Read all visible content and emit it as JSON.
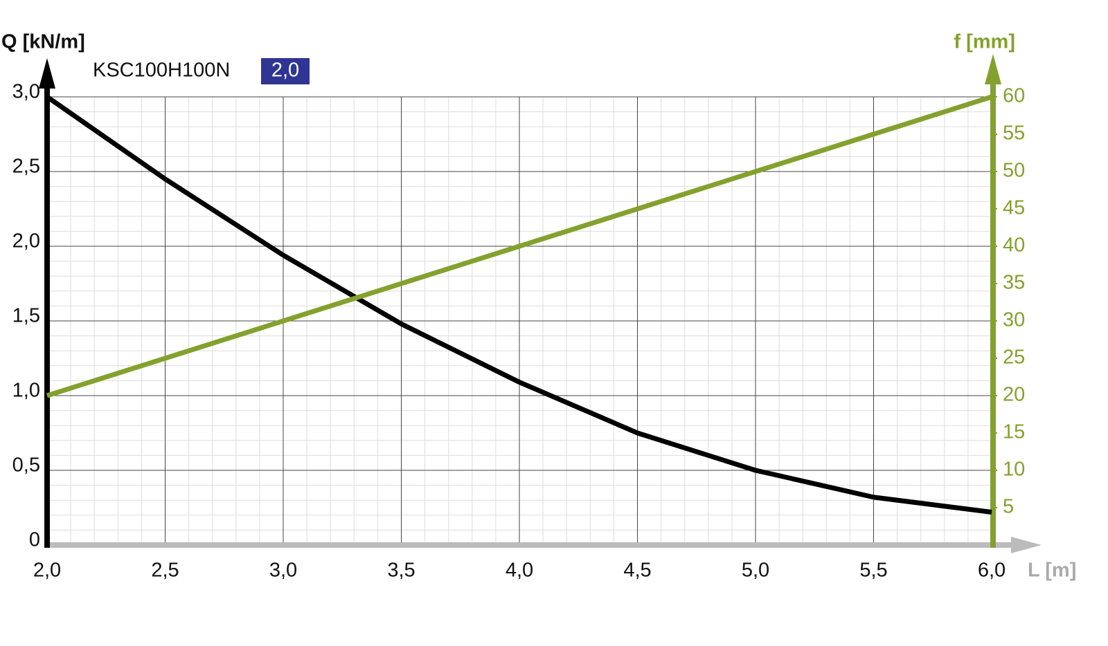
{
  "chart_data": {
    "type": "line",
    "y_label": "Q [kN/m]",
    "y2_label": "f [mm]",
    "x_label": "L [m]",
    "legend_label": "KSC100H100N",
    "legend_badge": "2,0",
    "legend_badge_color": "#2e3592",
    "grid": true,
    "x": [
      2.0,
      2.5,
      3.0,
      3.5,
      4.0,
      4.5,
      5.0,
      5.5,
      6.0
    ],
    "xlim": [
      2.0,
      6.0
    ],
    "xticks": [
      {
        "value": 2.0,
        "label": "2,0"
      },
      {
        "value": 2.5,
        "label": "2,5"
      },
      {
        "value": 3.0,
        "label": "3,0"
      },
      {
        "value": 3.5,
        "label": "3,5"
      },
      {
        "value": 4.0,
        "label": "4,0"
      },
      {
        "value": 4.5,
        "label": "4,5"
      },
      {
        "value": 5.0,
        "label": "5,0"
      },
      {
        "value": 5.5,
        "label": "5,5"
      },
      {
        "value": 6.0,
        "label": "6,0"
      }
    ],
    "ylim": [
      0,
      3.0
    ],
    "yticks": [
      0,
      {
        "value": 0.5,
        "label": "0,5"
      },
      {
        "value": 1.0,
        "label": "1,0"
      },
      {
        "value": 1.5,
        "label": "1,5"
      },
      {
        "value": 2.0,
        "label": "2,0"
      },
      {
        "value": 2.5,
        "label": "2,5"
      },
      {
        "value": 3.0,
        "label": "3,0"
      }
    ],
    "y2lim": [
      0,
      60
    ],
    "y2ticks": [
      5,
      10,
      15,
      20,
      25,
      30,
      35,
      40,
      45,
      50,
      55,
      60
    ],
    "series": [
      {
        "color": "#000000",
        "values": [
          3.0,
          2.45,
          1.94,
          1.48,
          1.09,
          0.75,
          0.5,
          0.32,
          0.22
        ]
      },
      {
        "color": "#84a12e",
        "axis": "y2",
        "values": [
          20,
          25,
          30,
          35,
          40,
          45,
          50,
          55,
          60
        ]
      }
    ]
  }
}
